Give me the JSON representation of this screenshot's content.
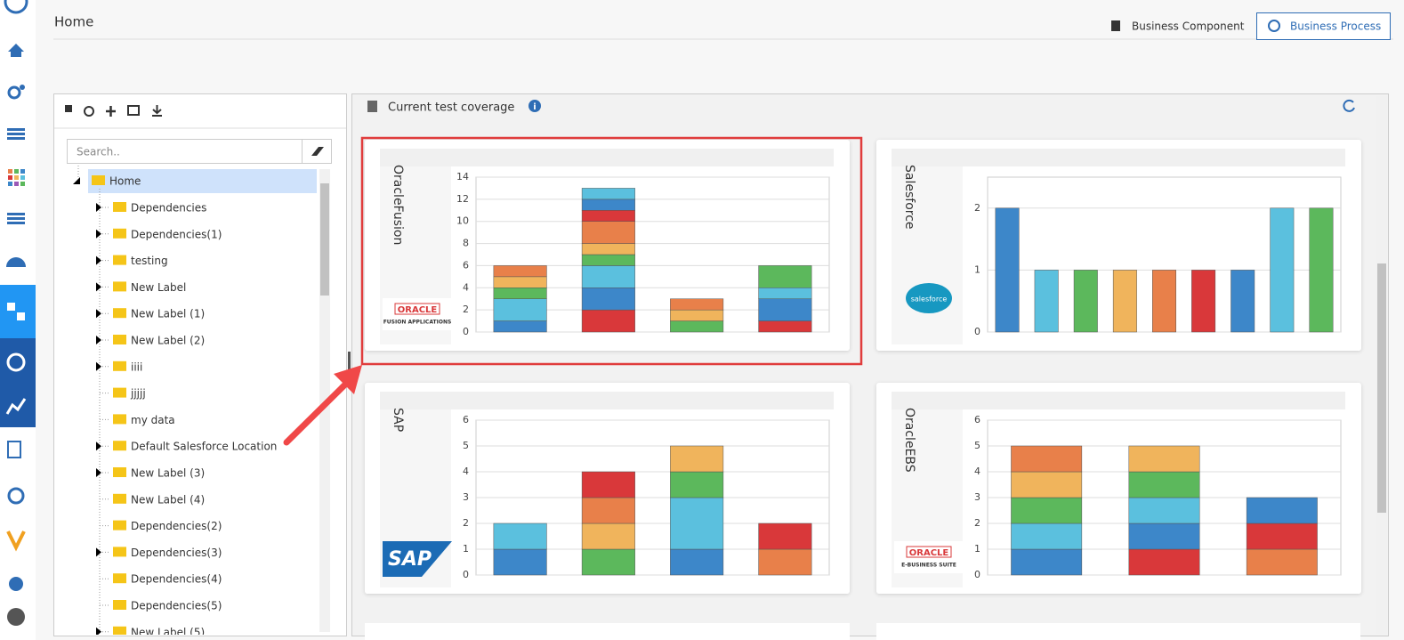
{
  "header": {
    "title": "Home"
  },
  "tabs": [
    "Business Component",
    "Business Process"
  ],
  "tree": {
    "search_placeholder": "Search..",
    "root": "Home",
    "items": [
      {
        "label": "Dependencies",
        "expandable": true
      },
      {
        "label": "Dependencies(1)",
        "expandable": true
      },
      {
        "label": "testing",
        "expandable": true
      },
      {
        "label": "New Label",
        "expandable": true
      },
      {
        "label": "New Label (1)",
        "expandable": true
      },
      {
        "label": "New Label (2)",
        "expandable": true
      },
      {
        "label": "iiii",
        "expandable": true
      },
      {
        "label": "jjjjj",
        "expandable": false
      },
      {
        "label": "my data",
        "expandable": false
      },
      {
        "label": "Default Salesforce Location",
        "expandable": true
      },
      {
        "label": "New Label (3)",
        "expandable": true
      },
      {
        "label": "New Label (4)",
        "expandable": false
      },
      {
        "label": "Dependencies(2)",
        "expandable": false
      },
      {
        "label": "Dependencies(3)",
        "expandable": true
      },
      {
        "label": "Dependencies(4)",
        "expandable": false
      },
      {
        "label": "Dependencies(5)",
        "expandable": false
      },
      {
        "label": "New Label (5)",
        "expandable": true
      }
    ]
  },
  "panel": {
    "title": "Current test coverage"
  },
  "chart_data": [
    {
      "type": "stacked_bar",
      "title": "OracleFusion",
      "logo": [
        "ORACLE",
        "FUSION APPLICATIONS"
      ],
      "categories": [
        null,
        null,
        null,
        null
      ],
      "series": [
        {
          "color": "#d9383a",
          "values": [
            0,
            2,
            0,
            1
          ]
        },
        {
          "color": "#3d87c9",
          "values": [
            1,
            2,
            0,
            2
          ]
        },
        {
          "color": "#5bc0de",
          "values": [
            2,
            2,
            0,
            1
          ]
        },
        {
          "color": "#5cb85c",
          "values": [
            1,
            1,
            1,
            2
          ]
        },
        {
          "color": "#f0b45c",
          "values": [
            1,
            1,
            1,
            0
          ]
        },
        {
          "color": "#e8804a",
          "values": [
            1,
            2,
            1,
            0
          ]
        },
        {
          "color": "#d9383a",
          "values": [
            0,
            1,
            0,
            0
          ]
        },
        {
          "color": "#3d87c9",
          "values": [
            0,
            1,
            0,
            0
          ]
        },
        {
          "color": "#5bc0de",
          "values": [
            0,
            1,
            0,
            0
          ]
        }
      ],
      "ylim": [
        0,
        14
      ],
      "yticks": [
        0,
        2,
        4,
        6,
        8,
        10,
        12,
        14
      ],
      "grid": true
    },
    {
      "type": "bar",
      "title": "Salesforce",
      "logo": [
        "salesforce"
      ],
      "categories": [
        null,
        null,
        null,
        null,
        null,
        null,
        null,
        null,
        null
      ],
      "values": [
        2,
        1,
        1,
        1,
        1,
        1,
        1,
        2,
        2
      ],
      "colors": [
        "#3d87c9",
        "#5bc0de",
        "#5cb85c",
        "#f0b45c",
        "#e8804a",
        "#d9383a",
        "#3d87c9",
        "#5bc0de",
        "#5cb85c"
      ],
      "ylim": [
        0,
        2.5
      ],
      "yticks": [
        0,
        1,
        2
      ],
      "grid": true
    },
    {
      "type": "stacked_bar",
      "title": "SAP",
      "logo": [
        "SAP"
      ],
      "categories": [
        null,
        null,
        null,
        null
      ],
      "series": [
        {
          "color": "#3d87c9",
          "values": [
            1,
            0,
            1,
            0
          ]
        },
        {
          "color": "#5bc0de",
          "values": [
            1,
            0,
            2,
            0
          ]
        },
        {
          "color": "#5cb85c",
          "values": [
            0,
            1,
            1,
            0
          ]
        },
        {
          "color": "#f0b45c",
          "values": [
            0,
            1,
            1,
            0
          ]
        },
        {
          "color": "#e8804a",
          "values": [
            0,
            1,
            0,
            1
          ]
        },
        {
          "color": "#d9383a",
          "values": [
            0,
            1,
            0,
            1
          ]
        }
      ],
      "ylim": [
        0,
        6
      ],
      "yticks": [
        0,
        1,
        2,
        3,
        4,
        5,
        6
      ],
      "grid": true
    },
    {
      "type": "stacked_bar",
      "title": "OracleEBS",
      "logo": [
        "ORACLE",
        "E-BUSINESS SUITE"
      ],
      "categories": [
        null,
        null,
        null
      ],
      "series": [
        {
          "color": "#d9383a",
          "values": [
            0,
            1,
            0
          ]
        },
        {
          "color": "#3d87c9",
          "values": [
            1,
            1,
            0
          ]
        },
        {
          "color": "#5bc0de",
          "values": [
            1,
            1,
            0
          ]
        },
        {
          "color": "#5cb85c",
          "values": [
            1,
            1,
            0
          ]
        },
        {
          "color": "#f0b45c",
          "values": [
            1,
            1,
            0
          ]
        },
        {
          "color": "#e8804a",
          "values": [
            1,
            0,
            1
          ]
        },
        {
          "color": "#d9383a",
          "values": [
            0,
            0,
            1
          ]
        },
        {
          "color": "#3d87c9",
          "values": [
            0,
            0,
            1
          ]
        }
      ],
      "ylim": [
        0,
        6
      ],
      "yticks": [
        0,
        1,
        2,
        3,
        4,
        5,
        6
      ],
      "grid": true
    }
  ]
}
